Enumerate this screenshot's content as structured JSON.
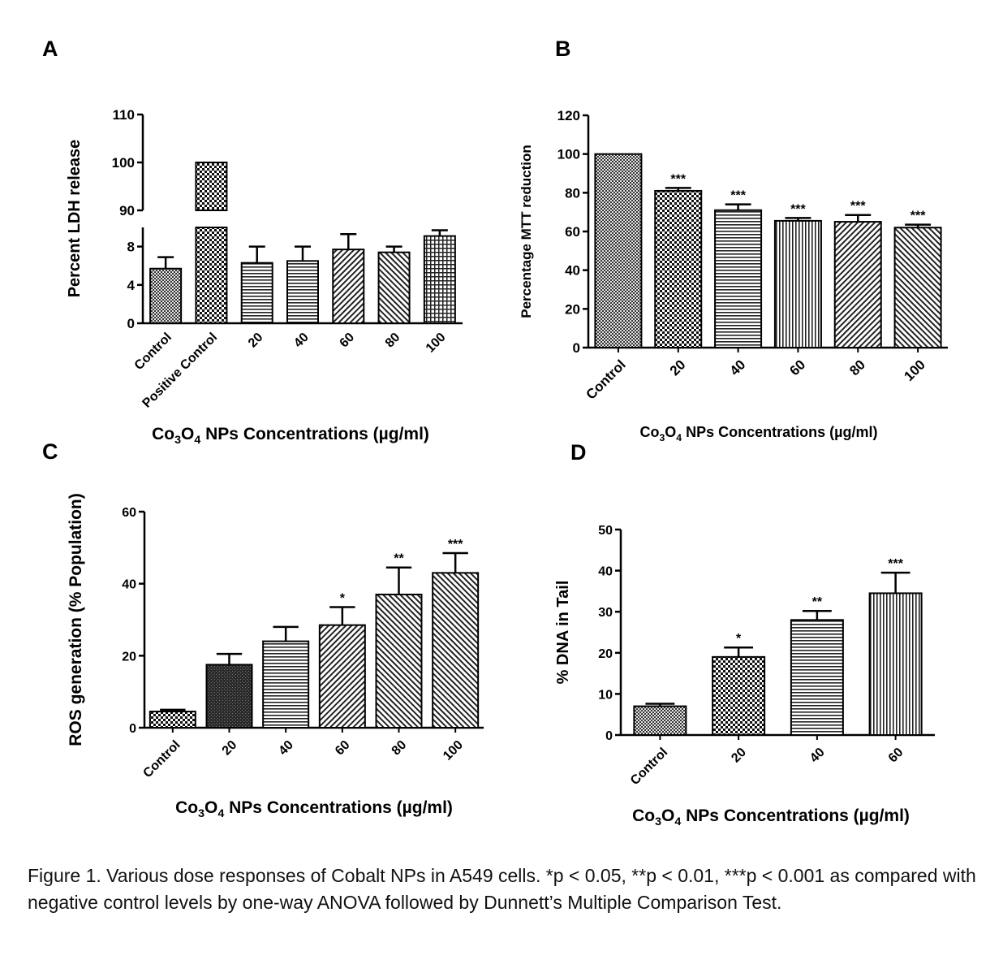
{
  "figure": {
    "caption": "Figure 1. Various dose responses of Cobalt NPs in A549 cells. *p < 0.05, **p < 0.01, ***p < 0.001 as compared with negative control levels by one-way ANOVA followed by Dunnett’s Multiple Comparison Test."
  },
  "chart_data": [
    {
      "panel": "A",
      "type": "bar",
      "ylabel": "Percent LDH release",
      "xlabel_parts": [
        "Co",
        "3",
        "O",
        "4",
        " NPs Concentrations (µg/ml)"
      ],
      "categories": [
        "Control",
        "Positive Control",
        "20",
        "40",
        "60",
        "80",
        "100"
      ],
      "values": [
        5.7,
        100,
        6.3,
        6.5,
        7.7,
        7.4,
        9.1
      ],
      "errors": [
        1.2,
        0,
        1.7,
        1.5,
        1.6,
        0.6,
        0.6
      ],
      "axis_break": {
        "lower": [
          0,
          10
        ],
        "upper": [
          90,
          110
        ]
      },
      "yticks_lower": [
        0,
        4,
        8
      ],
      "yticks_upper": [
        90,
        100,
        110
      ],
      "patterns": [
        "dense",
        "check",
        "hlines",
        "hlines",
        "dright",
        "dleft",
        "grid"
      ],
      "significance": [
        "",
        "",
        "",
        "",
        "",
        "",
        ""
      ]
    },
    {
      "panel": "B",
      "type": "bar",
      "ylabel": "Percentage MTT reduction",
      "xlabel_parts": [
        "Co",
        "3",
        "O",
        "4",
        " NPs Concentrations (µg/ml)"
      ],
      "categories": [
        "Control",
        "20",
        "40",
        "60",
        "80",
        "100"
      ],
      "values": [
        100,
        81,
        71,
        65.5,
        65,
        62
      ],
      "errors": [
        0,
        1.5,
        3,
        1.5,
        3.5,
        1.5
      ],
      "ylim": [
        0,
        120
      ],
      "yticks": [
        0,
        20,
        40,
        60,
        80,
        100,
        120
      ],
      "patterns": [
        "dense",
        "check",
        "hlines",
        "vlines",
        "dright",
        "dleft"
      ],
      "significance": [
        "",
        "***",
        "***",
        "***",
        "***",
        "***"
      ]
    },
    {
      "panel": "C",
      "type": "bar",
      "ylabel": "ROS generation (% Population)",
      "xlabel_parts": [
        "Co",
        "3",
        "O",
        "4",
        " NPs Concentrations (µg/ml)"
      ],
      "categories": [
        "Control",
        "20",
        "40",
        "60",
        "80",
        "100"
      ],
      "values": [
        4.5,
        17.5,
        24,
        28.5,
        37,
        43
      ],
      "errors": [
        0.5,
        3,
        4,
        5,
        7.5,
        5.5
      ],
      "ylim": [
        0,
        60
      ],
      "yticks": [
        0,
        20,
        40,
        60
      ],
      "patterns": [
        "check",
        "dark",
        "hlines",
        "dright",
        "dleft",
        "dleft"
      ],
      "significance": [
        "",
        "",
        "",
        "*",
        "**",
        "***"
      ]
    },
    {
      "panel": "D",
      "type": "bar",
      "ylabel": "% DNA in Tail",
      "xlabel_parts": [
        "Co",
        "3",
        "O",
        "4",
        " NPs Concentrations (µg/ml)"
      ],
      "categories": [
        "Control",
        "20",
        "40",
        "60"
      ],
      "values": [
        7,
        19,
        28,
        34.5
      ],
      "errors": [
        0.6,
        2.3,
        2.2,
        5
      ],
      "ylim": [
        0,
        50
      ],
      "yticks": [
        0,
        10,
        20,
        30,
        40,
        50
      ],
      "patterns": [
        "dense",
        "check",
        "hlines",
        "vlines"
      ],
      "significance": [
        "",
        "*",
        "**",
        "***"
      ]
    }
  ]
}
